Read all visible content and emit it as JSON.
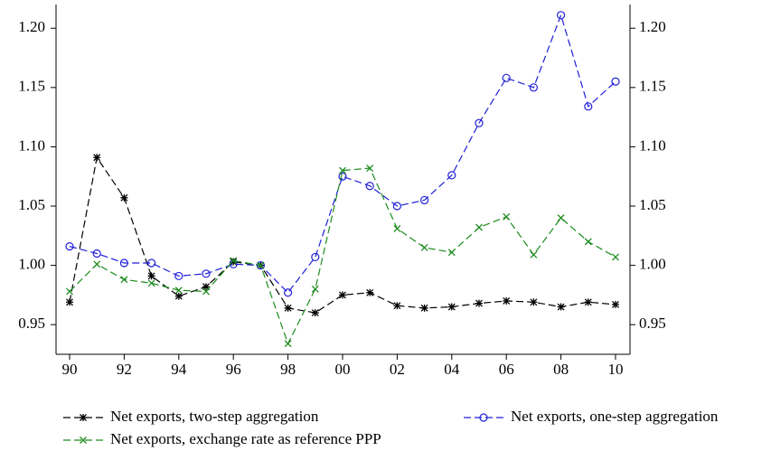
{
  "chart_data": {
    "type": "line",
    "categories": [
      "90",
      null,
      "92",
      null,
      "94",
      null,
      "96",
      null,
      "98",
      null,
      "00",
      null,
      "02",
      null,
      "04",
      null,
      "06",
      null,
      "08",
      null,
      "10"
    ],
    "series": [
      {
        "name": "Net exports, two-step aggregation",
        "color": "#000000",
        "marker": "asterisk",
        "values": [
          0.969,
          1.091,
          1.057,
          0.991,
          0.974,
          0.982,
          1.003,
          1.0,
          0.964,
          0.96,
          0.975,
          0.977,
          0.966,
          0.964,
          0.965,
          0.968,
          0.97,
          0.969,
          0.965,
          0.969,
          0.967
        ]
      },
      {
        "name": "Net exports, one-step aggregation",
        "color": "#1f1fd8",
        "marker": "circle",
        "values": [
          1.016,
          1.01,
          1.002,
          1.002,
          0.991,
          0.993,
          1.001,
          1.0,
          0.977,
          1.007,
          1.075,
          1.067,
          1.05,
          1.055,
          1.076,
          1.12,
          1.158,
          1.15,
          1.211,
          1.134,
          1.155
        ]
      },
      {
        "name": "Net exports, exchange rate as reference PPP",
        "color": "#1e8c1e",
        "marker": "x",
        "values": [
          0.978,
          1.001,
          0.988,
          0.985,
          0.979,
          0.978,
          1.004,
          1.0,
          0.934,
          0.98,
          1.08,
          1.082,
          1.031,
          1.015,
          1.011,
          1.032,
          1.041,
          1.009,
          1.04,
          1.02,
          1.007
        ]
      }
    ],
    "ylim": [
      0.925,
      1.22
    ],
    "yticks": [
      {
        "value": 0.95,
        "label": "0.95"
      },
      {
        "value": 1.0,
        "label": "1.00"
      },
      {
        "value": 1.05,
        "label": "1.05"
      },
      {
        "value": 1.1,
        "label": "1.10"
      },
      {
        "value": 1.15,
        "label": "1.15"
      },
      {
        "value": 1.2,
        "label": "1.20"
      }
    ],
    "y2lim": [
      0.925,
      1.22
    ],
    "y2ticks": [
      {
        "value": 0.95,
        "label": "0.95"
      },
      {
        "value": 1.0,
        "label": "1.00"
      },
      {
        "value": 1.05,
        "label": "1.05"
      },
      {
        "value": 1.1,
        "label": "1.10"
      },
      {
        "value": 1.15,
        "label": "1.15"
      },
      {
        "value": 1.2,
        "label": "1.20"
      }
    ],
    "grid": false,
    "legend": "bottom"
  }
}
